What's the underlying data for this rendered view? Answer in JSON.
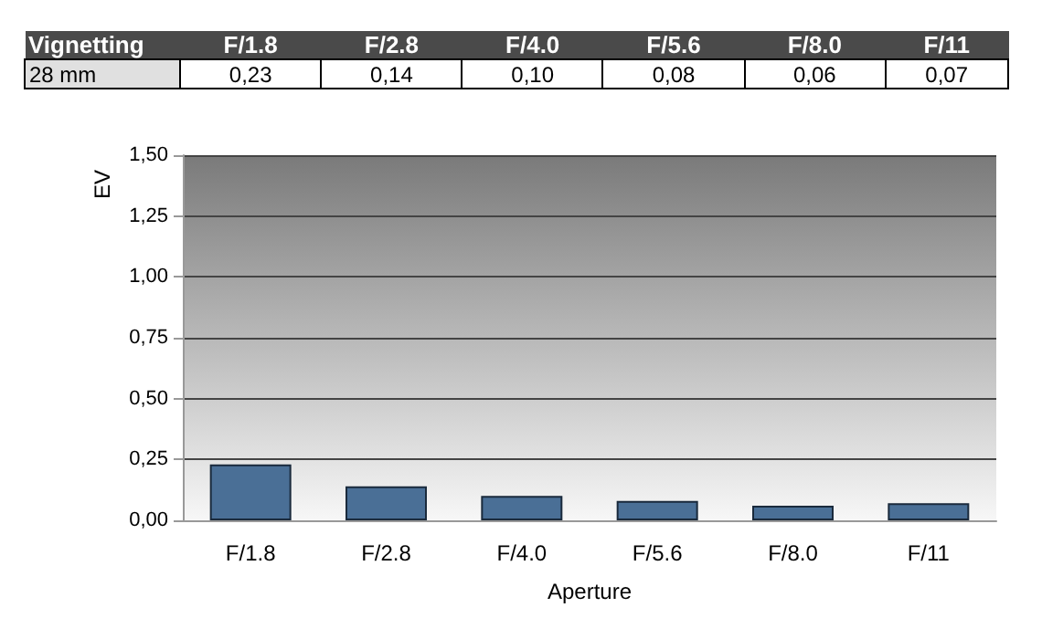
{
  "chart_data": {
    "type": "bar",
    "title": "Vignetting",
    "xlabel": "Aperture",
    "ylabel": "EV",
    "categories": [
      "F/1.8",
      "F/2.8",
      "F/4.0",
      "F/5.6",
      "F/8.0",
      "F/11"
    ],
    "series": [
      {
        "name": "28 mm",
        "color": "#4a6f96",
        "values": [
          0.23,
          0.14,
          0.1,
          0.08,
          0.06,
          0.07
        ],
        "value_labels": [
          "0,23",
          "0,14",
          "0,10",
          "0,08",
          "0,06",
          "0,07"
        ]
      }
    ],
    "ylim": [
      0,
      1.5
    ],
    "yticks": [
      {
        "value": 0,
        "label": "0,00"
      },
      {
        "value": 0.25,
        "label": "0,25"
      },
      {
        "value": 0.5,
        "label": "0,50"
      },
      {
        "value": 0.75,
        "label": "0,75"
      },
      {
        "value": 1,
        "label": "1,00"
      },
      {
        "value": 1.25,
        "label": "1,25"
      },
      {
        "value": 1.5,
        "label": "1,50"
      }
    ],
    "grid": "y",
    "legend": false
  }
}
